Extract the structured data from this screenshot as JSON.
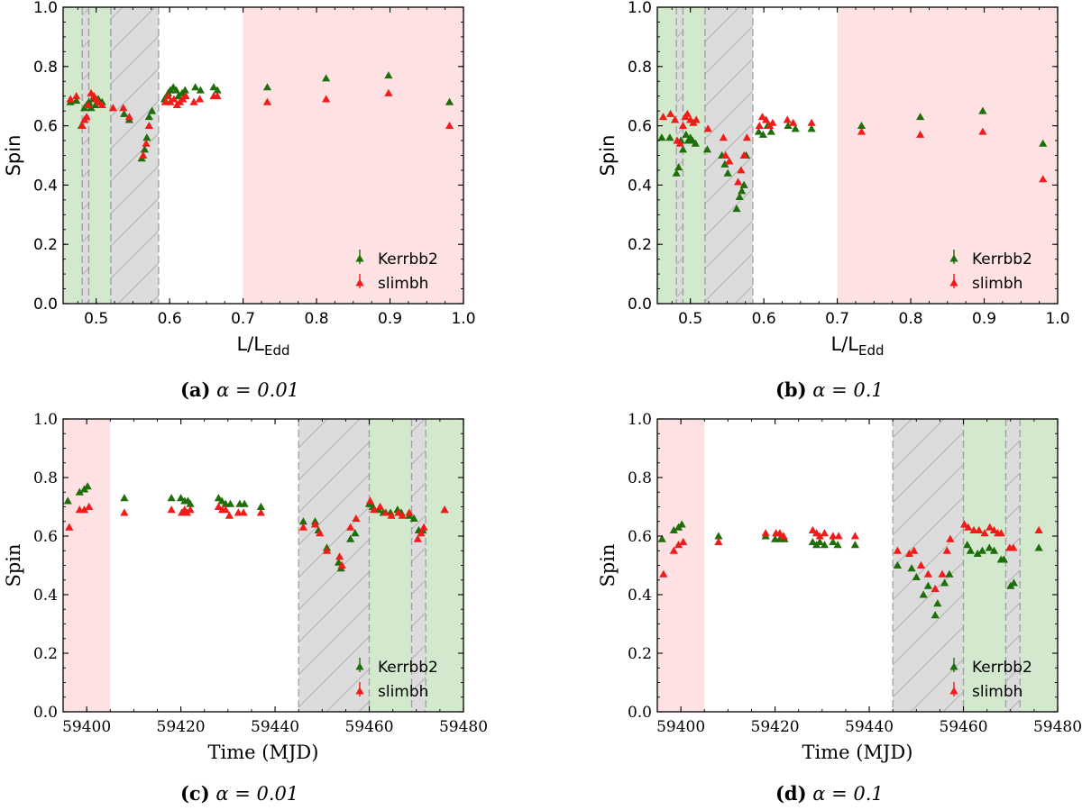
{
  "colors": {
    "kerrbb2": "#1e6e0a",
    "slimbh": "#f31a1a",
    "pink_band": "#fde1e3",
    "green_band": "#d2e9cd",
    "gray_band": "#dcdcdc",
    "hatch": "#b8b8b8",
    "dash": "#a0a0a0"
  },
  "chart_data": [
    {
      "id": "a",
      "type": "scatter",
      "caption_label": "(a)",
      "caption_eq": " α = 0.01",
      "xlabel_main": "L/L",
      "xlabel_sub": "Edd",
      "ylabel": "Spin",
      "xlim": [
        0.455,
        1.0
      ],
      "ylim": [
        0.0,
        1.0
      ],
      "xticks": [
        0.5,
        0.6,
        0.7,
        0.8,
        0.9,
        1.0
      ],
      "xtick_labels": [
        "0.5",
        "0.6",
        "0.7",
        "0.8",
        "0.9",
        "1.0"
      ],
      "yticks": [
        0.0,
        0.2,
        0.4,
        0.6,
        0.8,
        1.0
      ],
      "ytick_labels": [
        "0.0",
        "0.2",
        "0.4",
        "0.6",
        "0.8",
        "1.0"
      ],
      "legend_entries": [
        "Kerrbb2",
        "slimbh"
      ],
      "legend_position": "bottom-right",
      "regions": [
        {
          "kind": "green",
          "x0": 0.455,
          "x1": 0.481,
          "dash_left": false,
          "dash_right": true
        },
        {
          "kind": "gray",
          "x0": 0.481,
          "x1": 0.49,
          "dash_left": true,
          "dash_right": true
        },
        {
          "kind": "green",
          "x0": 0.49,
          "x1": 0.52,
          "dash_left": true,
          "dash_right": true
        },
        {
          "kind": "gray",
          "x0": 0.52,
          "x1": 0.585,
          "dash_left": true,
          "dash_right": true
        },
        {
          "kind": "pink",
          "x0": 0.7,
          "x1": 1.0,
          "dash_left": false,
          "dash_right": false
        }
      ],
      "series": [
        {
          "name": "Kerrbb2",
          "color_key": "kerrbb2",
          "x": [
            0.465,
            0.473,
            0.48,
            0.484,
            0.487,
            0.49,
            0.493,
            0.496,
            0.499,
            0.503,
            0.508,
            0.538,
            0.545,
            0.562,
            0.566,
            0.569,
            0.572,
            0.576,
            0.593,
            0.598,
            0.601,
            0.605,
            0.609,
            0.612,
            0.617,
            0.621,
            0.635,
            0.642,
            0.66,
            0.665,
            0.733,
            0.813,
            0.898,
            0.981
          ],
          "y": [
            0.68,
            0.685,
            0.6,
            0.66,
            0.67,
            0.68,
            0.66,
            0.69,
            0.67,
            0.69,
            0.68,
            0.64,
            0.62,
            0.49,
            0.52,
            0.56,
            0.63,
            0.65,
            0.69,
            0.71,
            0.72,
            0.73,
            0.72,
            0.7,
            0.71,
            0.72,
            0.73,
            0.72,
            0.73,
            0.72,
            0.73,
            0.76,
            0.77,
            0.68
          ]
        },
        {
          "name": "slimbh",
          "color_key": "slimbh",
          "x": [
            0.465,
            0.473,
            0.481,
            0.484,
            0.487,
            0.489,
            0.493,
            0.497,
            0.5,
            0.503,
            0.508,
            0.523,
            0.537,
            0.545,
            0.564,
            0.568,
            0.572,
            0.594,
            0.598,
            0.601,
            0.606,
            0.61,
            0.614,
            0.618,
            0.622,
            0.633,
            0.641,
            0.66,
            0.665,
            0.733,
            0.813,
            0.898,
            0.981
          ],
          "y": [
            0.69,
            0.7,
            0.6,
            0.62,
            0.63,
            0.67,
            0.71,
            0.7,
            0.69,
            0.68,
            0.67,
            0.66,
            0.66,
            0.63,
            0.5,
            0.54,
            0.6,
            0.68,
            0.7,
            0.68,
            0.69,
            0.67,
            0.68,
            0.69,
            0.7,
            0.68,
            0.69,
            0.7,
            0.7,
            0.68,
            0.69,
            0.71,
            0.6
          ]
        }
      ]
    },
    {
      "id": "b",
      "type": "scatter",
      "caption_label": "(b)",
      "caption_eq": " α = 0.1",
      "xlabel_main": "L/L",
      "xlabel_sub": "Edd",
      "ylabel": "Spin",
      "xlim": [
        0.455,
        1.0
      ],
      "ylim": [
        0.0,
        1.0
      ],
      "xticks": [
        0.5,
        0.6,
        0.7,
        0.8,
        0.9,
        1.0
      ],
      "xtick_labels": [
        "0.5",
        "0.6",
        "0.7",
        "0.8",
        "0.9",
        "1.0"
      ],
      "yticks": [
        0.0,
        0.2,
        0.4,
        0.6,
        0.8,
        1.0
      ],
      "ytick_labels": [
        "0.0",
        "0.2",
        "0.4",
        "0.6",
        "0.8",
        "1.0"
      ],
      "legend_entries": [
        "Kerrbb2",
        "slimbh"
      ],
      "legend_position": "bottom-right",
      "regions": [
        {
          "kind": "green",
          "x0": 0.455,
          "x1": 0.481,
          "dash_left": false,
          "dash_right": true
        },
        {
          "kind": "gray",
          "x0": 0.481,
          "x1": 0.49,
          "dash_left": true,
          "dash_right": true
        },
        {
          "kind": "green",
          "x0": 0.49,
          "x1": 0.52,
          "dash_left": true,
          "dash_right": true
        },
        {
          "kind": "gray",
          "x0": 0.52,
          "x1": 0.585,
          "dash_left": true,
          "dash_right": true
        },
        {
          "kind": "pink",
          "x0": 0.7,
          "x1": 1.0,
          "dash_left": false,
          "dash_right": false
        }
      ],
      "series": [
        {
          "name": "Kerrbb2",
          "color_key": "kerrbb2",
          "x": [
            0.461,
            0.472,
            0.481,
            0.484,
            0.487,
            0.49,
            0.494,
            0.497,
            0.5,
            0.503,
            0.507,
            0.523,
            0.543,
            0.547,
            0.551,
            0.563,
            0.567,
            0.57,
            0.573,
            0.576,
            0.593,
            0.599,
            0.605,
            0.61,
            0.633,
            0.643,
            0.665,
            0.733,
            0.813,
            0.898,
            0.98
          ],
          "y": [
            0.56,
            0.56,
            0.44,
            0.46,
            0.55,
            0.52,
            0.57,
            0.55,
            0.56,
            0.55,
            0.54,
            0.52,
            0.5,
            0.47,
            0.44,
            0.32,
            0.36,
            0.38,
            0.4,
            0.5,
            0.58,
            0.57,
            0.6,
            0.58,
            0.6,
            0.59,
            0.59,
            0.6,
            0.63,
            0.65,
            0.54
          ]
        },
        {
          "name": "slimbh",
          "color_key": "slimbh",
          "x": [
            0.463,
            0.473,
            0.479,
            0.482,
            0.486,
            0.49,
            0.493,
            0.496,
            0.5,
            0.504,
            0.508,
            0.524,
            0.545,
            0.548,
            0.553,
            0.565,
            0.569,
            0.573,
            0.577,
            0.594,
            0.598,
            0.603,
            0.608,
            0.612,
            0.632,
            0.64,
            0.665,
            0.733,
            0.813,
            0.898,
            0.98
          ],
          "y": [
            0.63,
            0.64,
            0.62,
            0.55,
            0.54,
            0.6,
            0.63,
            0.64,
            0.62,
            0.61,
            0.62,
            0.59,
            0.56,
            0.5,
            0.48,
            0.41,
            0.45,
            0.5,
            0.56,
            0.6,
            0.63,
            0.62,
            0.6,
            0.61,
            0.62,
            0.61,
            0.61,
            0.58,
            0.57,
            0.58,
            0.42
          ]
        }
      ]
    },
    {
      "id": "c",
      "type": "scatter",
      "caption_label": "(c)",
      "caption_eq": " α = 0.01",
      "xlabel_main": "Time (MJD)",
      "xlabel_sub": "",
      "ylabel": "Spin",
      "xlim": [
        59395,
        59480
      ],
      "ylim": [
        0.0,
        1.0
      ],
      "xticks": [
        59400,
        59420,
        59440,
        59460,
        59480
      ],
      "xtick_labels": [
        "59400",
        "59420",
        "59440",
        "59460",
        "59480"
      ],
      "yticks": [
        0.0,
        0.2,
        0.4,
        0.6,
        0.8,
        1.0
      ],
      "ytick_labels": [
        "0.0",
        "0.2",
        "0.4",
        "0.6",
        "0.8",
        "1.0"
      ],
      "legend_entries": [
        "Kerrbb2",
        "slimbh"
      ],
      "legend_position": "bottom-right",
      "regions": [
        {
          "kind": "pink",
          "x0": 59395,
          "x1": 59405,
          "dash_left": false,
          "dash_right": false
        },
        {
          "kind": "gray",
          "x0": 59445,
          "x1": 59460,
          "dash_left": true,
          "dash_right": true
        },
        {
          "kind": "green",
          "x0": 59460,
          "x1": 59469,
          "dash_left": true,
          "dash_right": true
        },
        {
          "kind": "gray",
          "x0": 59469,
          "x1": 59472,
          "dash_left": true,
          "dash_right": true
        },
        {
          "kind": "green",
          "x0": 59472,
          "x1": 59480,
          "dash_left": true,
          "dash_right": false
        }
      ],
      "series": [
        {
          "name": "Kerrbb2",
          "color_key": "kerrbb2",
          "x": [
            59396,
            59398.5,
            59399.5,
            59400.2,
            59408,
            59418,
            59420,
            59420.8,
            59421.5,
            59422,
            59428,
            59428.7,
            59429.5,
            59430.5,
            59432.5,
            59433.5,
            59437,
            59446,
            59448.5,
            59449.2,
            59451,
            59453.5,
            59454,
            59456,
            59457,
            59460,
            59460.8,
            59462,
            59463,
            59464.5,
            59466,
            59466.8,
            59468.5,
            59469.5,
            59470.5,
            59471.3,
            59476
          ],
          "y": [
            0.72,
            0.75,
            0.76,
            0.77,
            0.73,
            0.73,
            0.73,
            0.72,
            0.72,
            0.71,
            0.73,
            0.72,
            0.71,
            0.71,
            0.71,
            0.71,
            0.7,
            0.65,
            0.65,
            0.62,
            0.56,
            0.51,
            0.49,
            0.59,
            0.61,
            0.71,
            0.7,
            0.69,
            0.68,
            0.68,
            0.69,
            0.68,
            0.67,
            0.66,
            0.62,
            0.62,
            0.69
          ]
        },
        {
          "name": "slimbh",
          "color_key": "slimbh",
          "x": [
            59396.3,
            59398.5,
            59399.5,
            59400.5,
            59408,
            59418,
            59420.2,
            59420.8,
            59421.3,
            59422,
            59428,
            59428.8,
            59429.5,
            59430.3,
            59432.2,
            59433.3,
            59437,
            59446,
            59448.5,
            59449.5,
            59451,
            59453.7,
            59454.2,
            59456,
            59457.2,
            59460.2,
            59461,
            59462.3,
            59463.5,
            59464.7,
            59466.2,
            59467,
            59468.5,
            59470.3,
            59471,
            59471.6,
            59476
          ],
          "y": [
            0.63,
            0.69,
            0.69,
            0.7,
            0.68,
            0.69,
            0.68,
            0.69,
            0.68,
            0.69,
            0.7,
            0.69,
            0.69,
            0.67,
            0.68,
            0.68,
            0.68,
            0.63,
            0.64,
            0.61,
            0.55,
            0.53,
            0.5,
            0.63,
            0.66,
            0.72,
            0.69,
            0.7,
            0.68,
            0.67,
            0.68,
            0.67,
            0.68,
            0.59,
            0.61,
            0.63,
            0.69
          ]
        }
      ]
    },
    {
      "id": "d",
      "type": "scatter",
      "caption_label": "(d)",
      "caption_eq": " α = 0.1",
      "xlabel_main": "Time (MJD)",
      "xlabel_sub": "",
      "ylabel": "Spin",
      "xlim": [
        59395,
        59480
      ],
      "ylim": [
        0.0,
        1.0
      ],
      "xticks": [
        59400,
        59420,
        59440,
        59460,
        59480
      ],
      "xtick_labels": [
        "59400",
        "59420",
        "59440",
        "59460",
        "59480"
      ],
      "yticks": [
        0.0,
        0.2,
        0.4,
        0.6,
        0.8,
        1.0
      ],
      "ytick_labels": [
        "0.0",
        "0.2",
        "0.4",
        "0.6",
        "0.8",
        "1.0"
      ],
      "legend_entries": [
        "Kerrbb2",
        "slimbh"
      ],
      "legend_position": "bottom-right",
      "regions": [
        {
          "kind": "pink",
          "x0": 59395,
          "x1": 59405,
          "dash_left": false,
          "dash_right": false
        },
        {
          "kind": "gray",
          "x0": 59445,
          "x1": 59460,
          "dash_left": true,
          "dash_right": true
        },
        {
          "kind": "green",
          "x0": 59460,
          "x1": 59469,
          "dash_left": true,
          "dash_right": true
        },
        {
          "kind": "gray",
          "x0": 59469,
          "x1": 59472,
          "dash_left": true,
          "dash_right": true
        },
        {
          "kind": "green",
          "x0": 59472,
          "x1": 59480,
          "dash_left": true,
          "dash_right": false
        }
      ],
      "series": [
        {
          "name": "Kerrbb2",
          "color_key": "kerrbb2",
          "x": [
            59396,
            59398.5,
            59399.5,
            59400.2,
            59408,
            59418,
            59420,
            59421,
            59422,
            59428,
            59428.8,
            59429.5,
            59430.5,
            59432.3,
            59433.3,
            59437,
            59446,
            59449,
            59450,
            59451.5,
            59452.5,
            59454,
            59454.5,
            59456,
            59457,
            59460.8,
            59461.5,
            59463,
            59464,
            59465.5,
            59466.5,
            59468,
            59468.6,
            59470,
            59470.7,
            59476
          ],
          "y": [
            0.59,
            0.62,
            0.63,
            0.64,
            0.6,
            0.6,
            0.59,
            0.59,
            0.59,
            0.58,
            0.57,
            0.58,
            0.57,
            0.58,
            0.57,
            0.57,
            0.5,
            0.49,
            0.46,
            0.4,
            0.43,
            0.33,
            0.37,
            0.44,
            0.47,
            0.57,
            0.55,
            0.54,
            0.55,
            0.56,
            0.55,
            0.52,
            0.52,
            0.43,
            0.44,
            0.56
          ]
        },
        {
          "name": "slimbh",
          "color_key": "slimbh",
          "x": [
            59396.3,
            59398.5,
            59399.5,
            59400.5,
            59408,
            59418,
            59420.2,
            59421,
            59421.8,
            59428,
            59428.8,
            59429.5,
            59430.5,
            59432.3,
            59433.5,
            59437,
            59446,
            59448.5,
            59449.5,
            59451,
            59452.5,
            59454,
            59455.5,
            59456.5,
            59457.2,
            59460.2,
            59461,
            59462.2,
            59463.3,
            59464.5,
            59465.6,
            59466.5,
            59467.3,
            59468,
            59469.8,
            59470.6,
            59476
          ],
          "y": [
            0.47,
            0.55,
            0.57,
            0.58,
            0.58,
            0.61,
            0.61,
            0.61,
            0.6,
            0.62,
            0.61,
            0.6,
            0.61,
            0.6,
            0.6,
            0.6,
            0.55,
            0.54,
            0.55,
            0.5,
            0.47,
            0.42,
            0.47,
            0.55,
            0.59,
            0.64,
            0.63,
            0.62,
            0.62,
            0.61,
            0.63,
            0.62,
            0.61,
            0.61,
            0.56,
            0.56,
            0.62
          ]
        }
      ]
    }
  ]
}
